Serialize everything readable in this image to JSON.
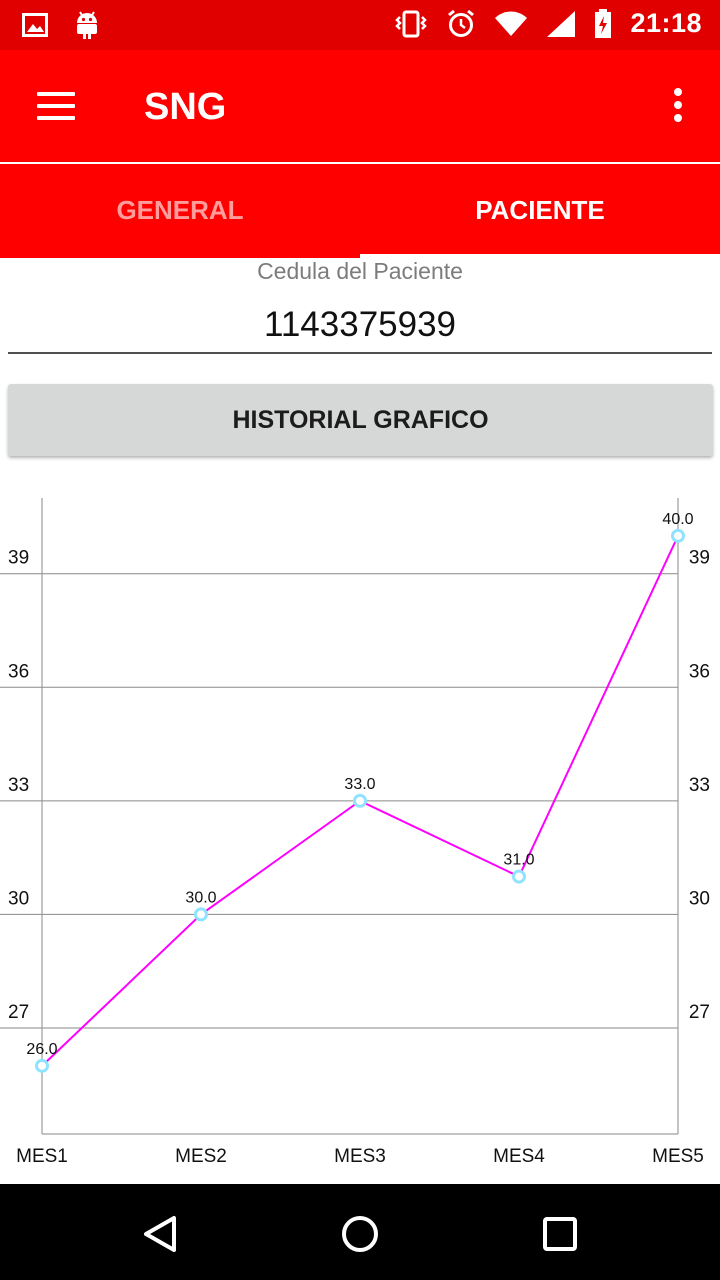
{
  "status_bar": {
    "time": "21:18",
    "icons": [
      "image-icon",
      "android-icon",
      "vibrate-icon",
      "alarm-icon",
      "wifi-icon",
      "signal-icon",
      "battery-charging-icon"
    ]
  },
  "app_bar": {
    "title": "SNG",
    "menu_icon": "hamburger-menu-icon",
    "overflow_icon": "more-vert-icon"
  },
  "tabs": [
    {
      "label": "GENERAL",
      "active": false
    },
    {
      "label": "PACIENTE",
      "active": true
    }
  ],
  "form": {
    "cedula_label": "Cedula del Paciente",
    "cedula_value": "1143375939",
    "history_button": "HISTORIAL GRAFICO"
  },
  "chart_data": {
    "type": "line",
    "categories": [
      "MES1",
      "MES2",
      "MES3",
      "MES4",
      "MES5"
    ],
    "series": [
      {
        "values": [
          26.0,
          30.0,
          33.0,
          31.0,
          40.0
        ],
        "color": "#ff00ff",
        "marker_color": "#8fe3ff"
      }
    ],
    "value_labels": [
      "26.0",
      "30.0",
      "33.0",
      "31.0",
      "40.0"
    ],
    "y_ticks": [
      27,
      30,
      33,
      36,
      39
    ],
    "ylim": [
      24.2,
      41.0
    ],
    "grid": true,
    "dual_y_axis": true
  },
  "nav_bar": {
    "icons": [
      "back-icon",
      "home-icon",
      "recents-icon"
    ]
  }
}
